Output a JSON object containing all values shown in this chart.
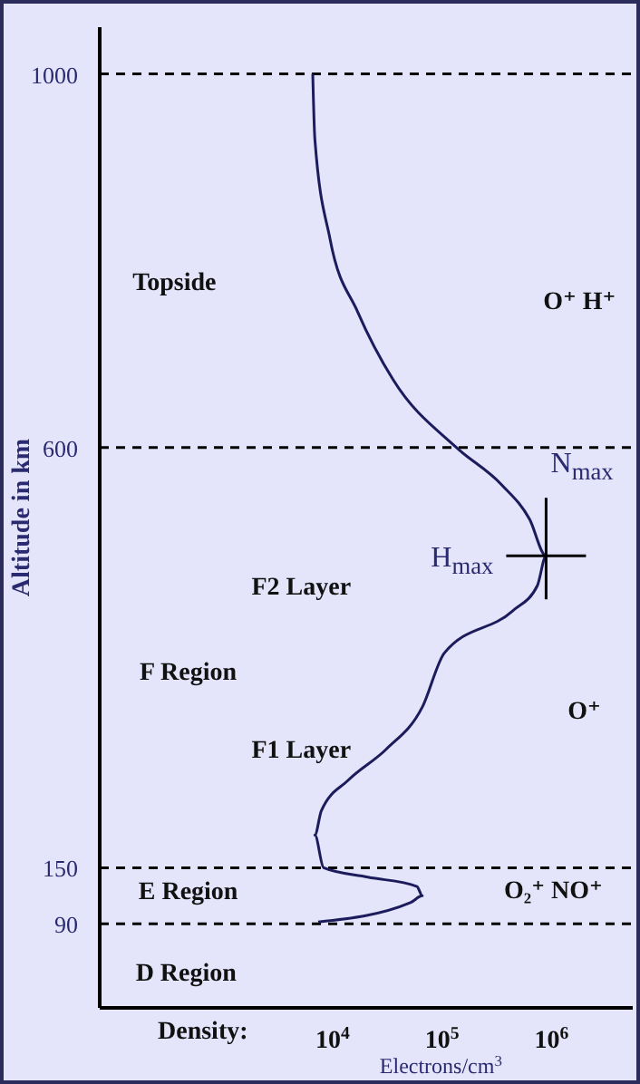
{
  "chart_data": {
    "type": "line",
    "xlabel": "Electrons/cm$^{3}$",
    "ylabel": "Altitude in km",
    "log": "x",
    "marker": "none",
    "line_style": "solid",
    "xlim": [
      75,
      5500000
    ],
    "xticks": [
      {
        "value": 10000,
        "label": "10$^{4}$"
      },
      {
        "value": 100000,
        "label": "10$^{5}$"
      },
      {
        "value": 1000000,
        "label": "10$^{6}$"
      }
    ],
    "ylim": [
      0,
      1050
    ],
    "yticks": [
      90,
      150,
      600,
      1000
    ],
    "ref_lines": [
      {
        "axis": "y",
        "value": 1000,
        "color": "#000000",
        "line_style": "dashed"
      },
      {
        "axis": "y",
        "value": 600,
        "color": "#000000",
        "line_style": "dashed"
      },
      {
        "axis": "y",
        "value": 150,
        "color": "#000000",
        "line_style": "dashed"
      },
      {
        "axis": "y",
        "value": 90,
        "color": "#000000",
        "line_style": "dashed"
      }
    ],
    "series": [
      {
        "color": "#1c1c5c",
        "x": [
          6600,
          6900,
          9500,
          17000,
          36000,
          135000,
          350000,
          630000,
          890000,
          740000,
          440000,
          105000,
          66000,
          31000,
          14000,
          7900,
          6900,
          8300,
          21000,
          59000,
          66000,
          52000,
          7400
        ],
        "values": [
          1000,
          930,
          823,
          745,
          672,
          600,
          560,
          523,
          484,
          452,
          425,
          380,
          322,
          277,
          244,
          211,
          185,
          150,
          140,
          130,
          120,
          113,
          92
        ]
      }
    ],
    "annotations": [
      "Density:",
      "Topside",
      "O⁺ H⁺",
      "F2 Layer",
      "F Region",
      "F1 Layer",
      "O⁺",
      "E Region",
      "O₂⁺ NO⁺",
      "D Region",
      "N$_{max}$",
      "H$_{max}$"
    ]
  }
}
